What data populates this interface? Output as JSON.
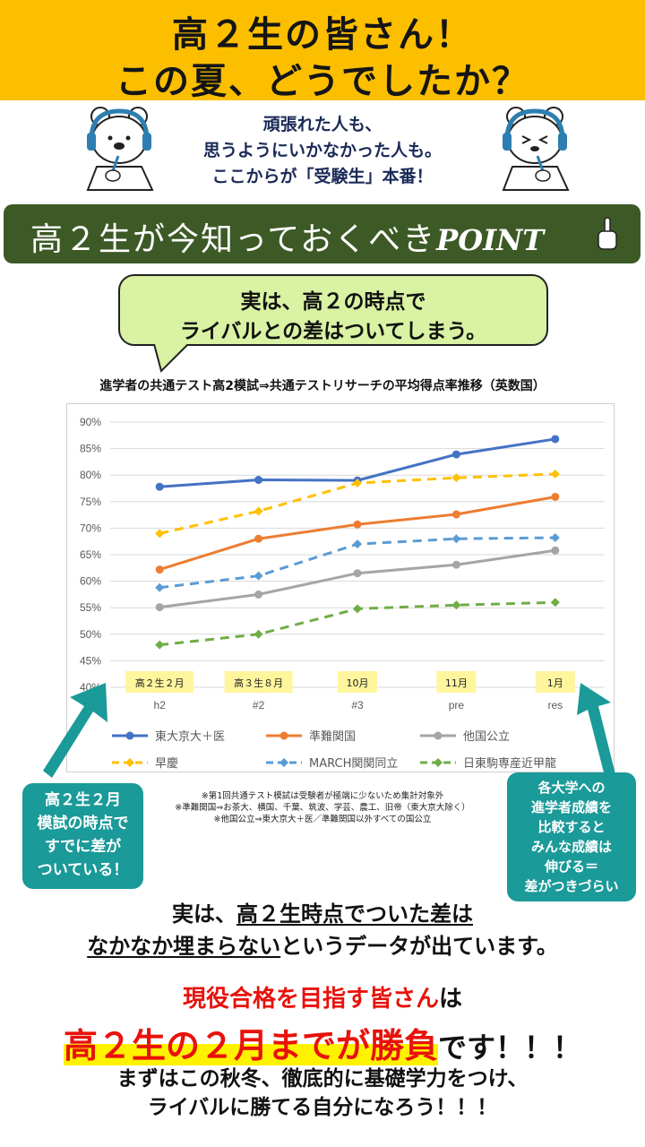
{
  "header": {
    "line1": "高２生の皆さん！",
    "line2": "この夏、どうでしたか？"
  },
  "intro": {
    "lines": [
      "頑張れた人も、",
      "思うようにいかなかった人も。",
      "ここからが「受験生」本番！"
    ]
  },
  "point_bar": {
    "text": "高２生が今知っておくべき",
    "point": "POINT"
  },
  "bubble": {
    "line1": "実は、高２の時点で",
    "line2": "ライバルとの差はついてしまう。"
  },
  "chart_data": {
    "type": "line",
    "title": "進学者の共通テスト高2模試⇒共通テストリサーチの平均得点率推移（英数国）",
    "x": [
      "h2",
      "#2",
      "#3",
      "pre",
      "res"
    ],
    "x_annotations": [
      "高２生２月",
      "高３生８月",
      "10月",
      "11月",
      "1月"
    ],
    "y_ticks": [
      "40%",
      "45%",
      "50%",
      "55%",
      "60%",
      "65%",
      "70%",
      "75%",
      "80%",
      "85%",
      "90%"
    ],
    "ylim": [
      40,
      90
    ],
    "grid": true,
    "legend_position": "bottom",
    "series": [
      {
        "name": "東大京大＋医",
        "color": "#4472c4",
        "dashed": false,
        "values": [
          77.8,
          79.1,
          79.0,
          83.9,
          86.8
        ]
      },
      {
        "name": "準難関国",
        "color": "#ed7d31",
        "dashed": false,
        "values": [
          62.2,
          68.0,
          70.7,
          72.6,
          75.9
        ]
      },
      {
        "name": "他国公立",
        "color": "#a5a5a5",
        "dashed": false,
        "values": [
          55.1,
          57.5,
          61.5,
          63.1,
          65.8
        ]
      },
      {
        "name": "早慶",
        "color": "#ffc000",
        "dashed": true,
        "values": [
          69.0,
          73.2,
          78.5,
          79.5,
          80.2
        ]
      },
      {
        "name": "MARCH関関同立",
        "color": "#5b9bd5",
        "dashed": true,
        "values": [
          58.8,
          61.0,
          67.0,
          68.0,
          68.2
        ]
      },
      {
        "name": "日東駒専産近甲龍",
        "color": "#70ad47",
        "dashed": true,
        "values": [
          48.0,
          50.0,
          54.8,
          55.5,
          56.0
        ]
      }
    ]
  },
  "notes": [
    "※第1回共通テスト模試は受験者が極端に少ないため集計対象外",
    "※準難関国⇒お茶大、横国、千葉、筑波、学芸、農工、旧帝（東大京大除く）",
    "※他国公立⇒東大京大＋医／準難関国以外すべての国公立"
  ],
  "callout_left": {
    "lines": [
      "高２生２月",
      "模試の時点で",
      "すでに差が",
      "ついている！"
    ]
  },
  "callout_right": {
    "lines": [
      "各大学への",
      "進学者成績を",
      "比較すると",
      "みんな成績は",
      "伸びる＝",
      "差がつきづらい"
    ]
  },
  "conclusion": {
    "l1_a": "実は、",
    "l1_b": "高２生時点でついた差は",
    "l2_a": "なかなか埋まらない",
    "l2_b": "というデータが出ています。",
    "l3_a": "現役合格を目指す皆さん",
    "l3_b": "は",
    "l4_a": "高２生の２月までが勝負",
    "l4_b": "です！！！",
    "l5": "まずはこの秋冬、徹底的に基礎学力をつけ、",
    "l6": "ライバルに勝てる自分になろう！！！"
  },
  "colors": {
    "header_bg": "#fcbf00",
    "point_bar_bg": "#3d5a26",
    "bubble_bg": "#d9f2a3",
    "callout_bg": "#1a9a98",
    "accent_red": "#e8120c",
    "highlight_yellow": "#fff200"
  },
  "icons": [
    "bear-studying-icon",
    "bear-tired-icon",
    "pointing-hand-icon"
  ]
}
